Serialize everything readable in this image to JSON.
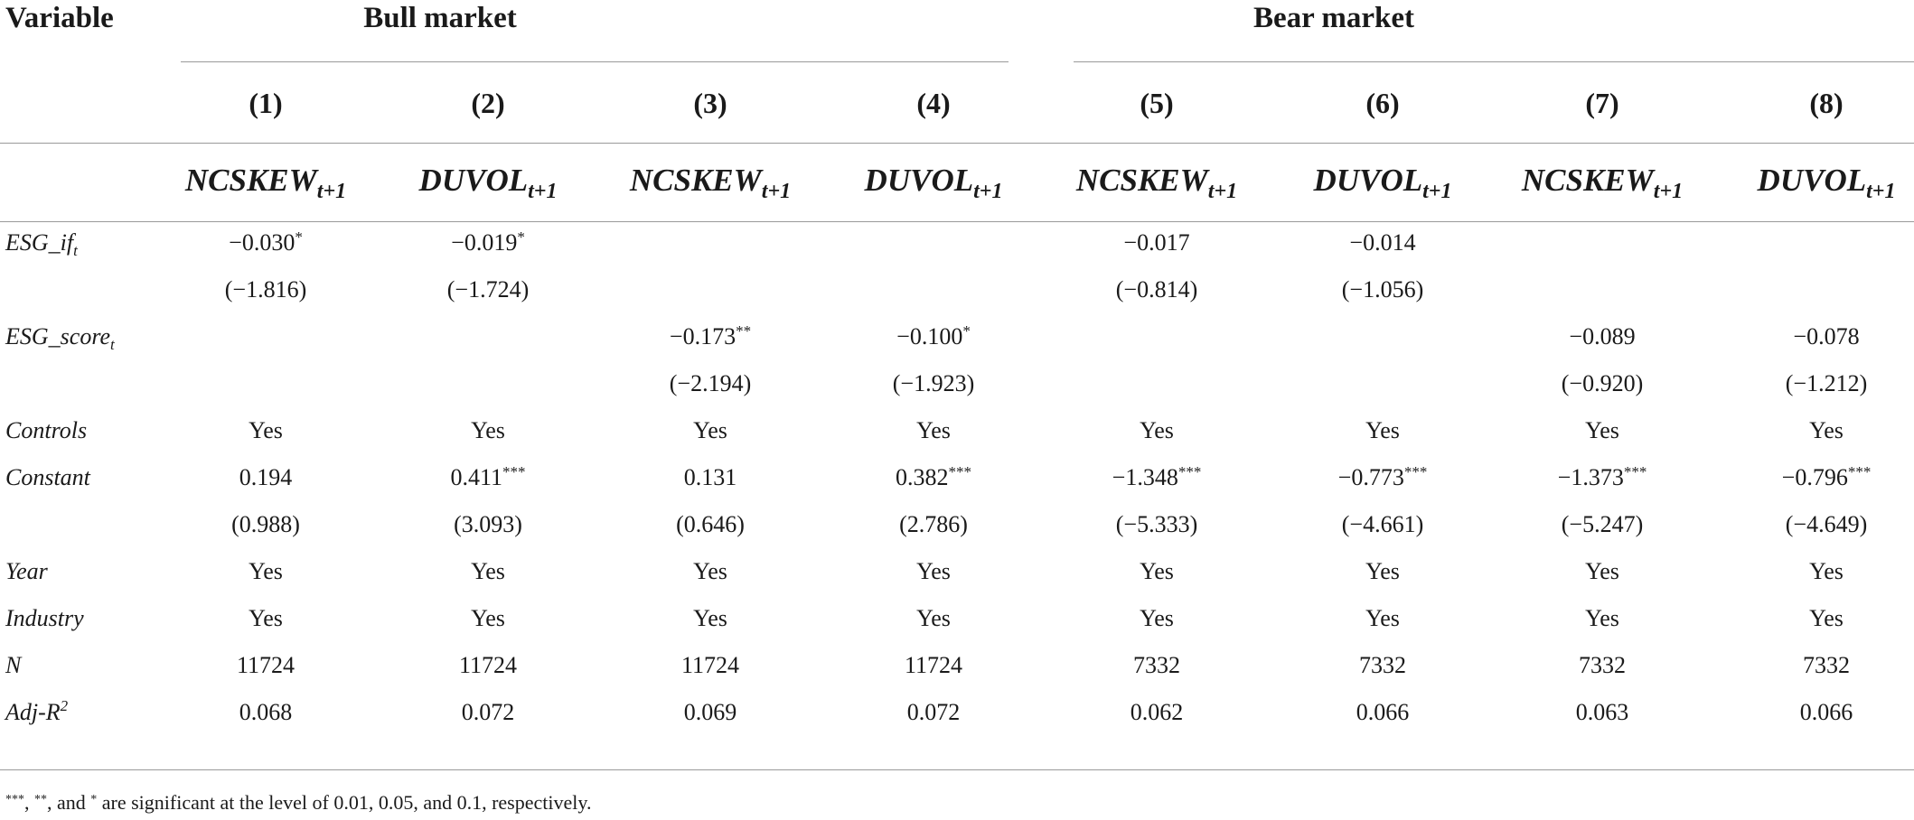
{
  "table": {
    "variable_header": "Variable",
    "groups": [
      "Bull market",
      "Bear market"
    ],
    "columns": [
      {
        "num": "(1)",
        "var": "NCSKEW",
        "sub": "t+1"
      },
      {
        "num": "(2)",
        "var": "DUVOL",
        "sub": "t+1"
      },
      {
        "num": "(3)",
        "var": "NCSKEW",
        "sub": "t+1"
      },
      {
        "num": "(4)",
        "var": "DUVOL",
        "sub": "t+1"
      },
      {
        "num": "(5)",
        "var": "NCSKEW",
        "sub": "t+1"
      },
      {
        "num": "(6)",
        "var": "DUVOL",
        "sub": "t+1"
      },
      {
        "num": "(7)",
        "var": "NCSKEW",
        "sub": "t+1"
      },
      {
        "num": "(8)",
        "var": "DUVOL",
        "sub": "t+1"
      }
    ],
    "rows": [
      {
        "label": "ESG_if",
        "sub": "t",
        "sup": "",
        "cells": [
          [
            "−0.030",
            "*"
          ],
          [
            "−0.019",
            "*"
          ],
          [
            "",
            ""
          ],
          [
            "",
            ""
          ],
          [
            "−0.017",
            ""
          ],
          [
            "−0.014",
            ""
          ],
          [
            "",
            ""
          ],
          [
            "",
            ""
          ]
        ]
      },
      {
        "label": "",
        "sub": "",
        "sup": "",
        "cells": [
          [
            "(−1.816)",
            ""
          ],
          [
            "(−1.724)",
            ""
          ],
          [
            "",
            ""
          ],
          [
            "",
            ""
          ],
          [
            "(−0.814)",
            ""
          ],
          [
            "(−1.056)",
            ""
          ],
          [
            "",
            ""
          ],
          [
            "",
            ""
          ]
        ]
      },
      {
        "label": "ESG_score",
        "sub": "t",
        "sup": "",
        "cells": [
          [
            "",
            ""
          ],
          [
            "",
            ""
          ],
          [
            "−0.173",
            "**"
          ],
          [
            "−0.100",
            "*"
          ],
          [
            "",
            ""
          ],
          [
            "",
            ""
          ],
          [
            "−0.089",
            ""
          ],
          [
            "−0.078",
            ""
          ]
        ]
      },
      {
        "label": "",
        "sub": "",
        "sup": "",
        "cells": [
          [
            "",
            ""
          ],
          [
            "",
            ""
          ],
          [
            "(−2.194)",
            ""
          ],
          [
            "(−1.923)",
            ""
          ],
          [
            "",
            ""
          ],
          [
            "",
            ""
          ],
          [
            "(−0.920)",
            ""
          ],
          [
            "(−1.212)",
            ""
          ]
        ]
      },
      {
        "label": "Controls",
        "sub": "",
        "sup": "",
        "cells": [
          [
            "Yes",
            ""
          ],
          [
            "Yes",
            ""
          ],
          [
            "Yes",
            ""
          ],
          [
            "Yes",
            ""
          ],
          [
            "Yes",
            ""
          ],
          [
            "Yes",
            ""
          ],
          [
            "Yes",
            ""
          ],
          [
            "Yes",
            ""
          ]
        ]
      },
      {
        "label": "Constant",
        "sub": "",
        "sup": "",
        "cells": [
          [
            "0.194",
            ""
          ],
          [
            "0.411",
            "***"
          ],
          [
            "0.131",
            ""
          ],
          [
            "0.382",
            "***"
          ],
          [
            "−1.348",
            "***"
          ],
          [
            "−0.773",
            "***"
          ],
          [
            "−1.373",
            "***"
          ],
          [
            "−0.796",
            "***"
          ]
        ]
      },
      {
        "label": "",
        "sub": "",
        "sup": "",
        "cells": [
          [
            "(0.988)",
            ""
          ],
          [
            "(3.093)",
            ""
          ],
          [
            "(0.646)",
            ""
          ],
          [
            "(2.786)",
            ""
          ],
          [
            "(−5.333)",
            ""
          ],
          [
            "(−4.661)",
            ""
          ],
          [
            "(−5.247)",
            ""
          ],
          [
            "(−4.649)",
            ""
          ]
        ]
      },
      {
        "label": "Year",
        "sub": "",
        "sup": "",
        "cells": [
          [
            "Yes",
            ""
          ],
          [
            "Yes",
            ""
          ],
          [
            "Yes",
            ""
          ],
          [
            "Yes",
            ""
          ],
          [
            "Yes",
            ""
          ],
          [
            "Yes",
            ""
          ],
          [
            "Yes",
            ""
          ],
          [
            "Yes",
            ""
          ]
        ]
      },
      {
        "label": "Industry",
        "sub": "",
        "sup": "",
        "cells": [
          [
            "Yes",
            ""
          ],
          [
            "Yes",
            ""
          ],
          [
            "Yes",
            ""
          ],
          [
            "Yes",
            ""
          ],
          [
            "Yes",
            ""
          ],
          [
            "Yes",
            ""
          ],
          [
            "Yes",
            ""
          ],
          [
            "Yes",
            ""
          ]
        ]
      },
      {
        "label": "N",
        "sub": "",
        "sup": "",
        "cells": [
          [
            "11724",
            ""
          ],
          [
            "11724",
            ""
          ],
          [
            "11724",
            ""
          ],
          [
            "11724",
            ""
          ],
          [
            "7332",
            ""
          ],
          [
            "7332",
            ""
          ],
          [
            "7332",
            ""
          ],
          [
            "7332",
            ""
          ]
        ]
      },
      {
        "label": "Adj-R",
        "sub": "",
        "sup": "2",
        "cells": [
          [
            "0.068",
            ""
          ],
          [
            "0.072",
            ""
          ],
          [
            "0.069",
            ""
          ],
          [
            "0.072",
            ""
          ],
          [
            "0.062",
            ""
          ],
          [
            "0.066",
            ""
          ],
          [
            "0.063",
            ""
          ],
          [
            "0.066",
            ""
          ]
        ]
      }
    ]
  },
  "footnote": {
    "s1": "***",
    "t1": ", ",
    "s2": "**",
    "t2": ", and ",
    "s3": "*",
    "text": " are significant at the level of 0.01, 0.05, and 0.1, respectively."
  }
}
